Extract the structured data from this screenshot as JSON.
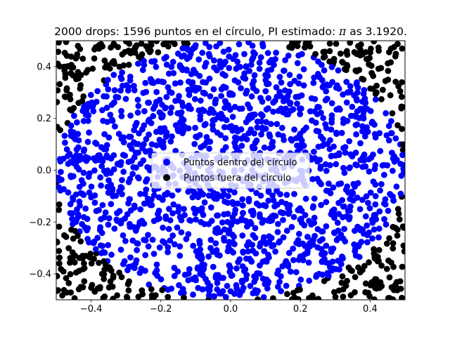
{
  "chart_data": {
    "type": "scatter",
    "title_prefix": "2000 drops: 1596 puntos en el círculo, PI estimado: ",
    "title_pi": "π",
    "title_suffix": " as 3.1920.",
    "xlabel": "",
    "ylabel": "",
    "xlim": [
      -0.5,
      0.5
    ],
    "ylim": [
      -0.5,
      0.5
    ],
    "xticks": [
      -0.4,
      -0.2,
      0.0,
      0.2,
      0.4
    ],
    "yticks": [
      -0.4,
      -0.2,
      0.0,
      0.2,
      0.4
    ],
    "xtick_labels": [
      "−0.4",
      "−0.2",
      "0.0",
      "0.2",
      "0.4"
    ],
    "ytick_labels": [
      "−0.4",
      "−0.2",
      "0.0",
      "0.2",
      "0.4"
    ],
    "grid": false,
    "legend_position": "center",
    "total_points": 2000,
    "points_inside": 1596,
    "circle_radius": 0.5,
    "pi_estimate": 3.192,
    "series": [
      {
        "name": "Puntos dentro del círculo",
        "color": "#0000ff",
        "count": 1596
      },
      {
        "name": "Puntos fuera del circulo",
        "color": "#000000",
        "count": 404
      }
    ]
  }
}
